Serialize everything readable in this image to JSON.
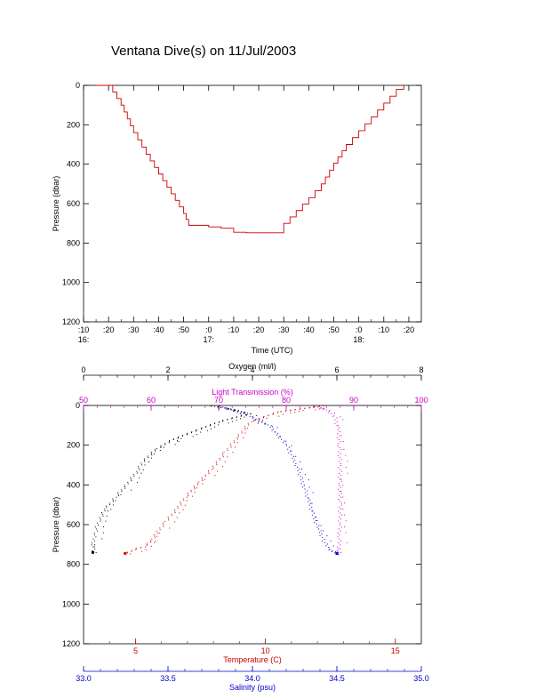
{
  "title": "Ventana Dive(s) on 11/Jul/2003",
  "chart_data": [
    {
      "type": "line",
      "xlabel": "Time (UTC)",
      "ylabel": "Pressure (dbar)",
      "x_ticks": [
        ":10",
        ":20",
        ":30",
        ":40",
        ":50",
        ":0",
        ":10",
        ":20",
        ":30",
        ":40",
        ":50",
        ":0",
        ":10",
        ":20"
      ],
      "hour_labels": [
        {
          "tick": ":10",
          "hour": "16:"
        },
        {
          "tick": ":0",
          "hour": "17:"
        },
        {
          "tick": ":0",
          "hour": "18:"
        }
      ],
      "y_ticks": [
        "0",
        "200",
        "400",
        "600",
        "800",
        "1000",
        "1200"
      ],
      "xlim": [
        "16:10",
        "18:25"
      ],
      "ylim": [
        0,
        1200
      ],
      "y_reversed": true,
      "series": [
        {
          "color": "#cc0000",
          "x": [
            "16:15",
            "16:17",
            "16:20",
            "16:25",
            "16:30",
            "16:35",
            "16:40",
            "16:45",
            "16:50",
            "16:52",
            "17:00",
            "17:05",
            "17:10",
            "17:15",
            "17:20",
            "17:25",
            "17:28",
            "17:30",
            "17:35",
            "17:40",
            "17:45",
            "17:50",
            "17:55",
            "18:00",
            "18:05",
            "18:10",
            "18:15",
            "18:18"
          ],
          "y": [
            0,
            0,
            0,
            100,
            240,
            350,
            450,
            550,
            650,
            710,
            718,
            725,
            745,
            748,
            748,
            748,
            748,
            700,
            635,
            570,
            500,
            395,
            300,
            230,
            160,
            90,
            20,
            0
          ]
        }
      ]
    },
    {
      "type": "scatter",
      "ylabel": "Pressure (dbar)",
      "y_ticks": [
        "0",
        "200",
        "400",
        "600",
        "800",
        "1000",
        "1200"
      ],
      "ylim": [
        0,
        1200
      ],
      "y_reversed": true,
      "axes": [
        {
          "label": "Oxygen (ml/l)",
          "color": "#000000",
          "min": 0,
          "max": 8,
          "ticks": [
            "0",
            "2",
            "4",
            "6",
            "8"
          ],
          "position": "top"
        },
        {
          "label": "Light Transmission (%)",
          "color": "#cc00cc",
          "min": 50,
          "max": 100,
          "ticks": [
            "50",
            "60",
            "70",
            "80",
            "90",
            "100"
          ],
          "position": "top"
        },
        {
          "label": "Temperature (C)",
          "color": "#cc0000",
          "min": 3,
          "max": 16,
          "ticks": [
            "5",
            "10",
            "15"
          ],
          "position": "bottom"
        },
        {
          "label": "Salinity (psu)",
          "color": "#0000cc",
          "min": 33.0,
          "max": 35.0,
          "ticks": [
            "33.0",
            "33.5",
            "34.0",
            "34.5",
            "35.0"
          ],
          "position": "bottom"
        }
      ],
      "series": [
        {
          "axis": 0,
          "color": "#000000",
          "x": [
            3.0,
            3.6,
            3.9,
            3.2,
            2.7,
            2.1,
            1.7,
            1.4,
            1.25,
            1.0,
            0.75,
            0.5,
            0.35,
            0.25,
            0.22,
            0.22
          ],
          "y": [
            0,
            20,
            40,
            80,
            120,
            170,
            220,
            280,
            330,
            400,
            460,
            520,
            580,
            650,
            700,
            740
          ]
        },
        {
          "axis": 1,
          "color": "#cc00cc",
          "x": [
            84,
            86,
            87.2,
            87.6,
            87.8,
            87.9,
            87.9,
            87.9,
            87.9,
            87.8,
            87.8,
            87.6,
            87.5
          ],
          "y": [
            0,
            20,
            60,
            120,
            200,
            300,
            400,
            500,
            600,
            660,
            700,
            730,
            745
          ]
        },
        {
          "axis": 2,
          "color": "#cc0000",
          "x": [
            12.2,
            10.5,
            9.4,
            8.9,
            8.4,
            7.9,
            7.4,
            6.9,
            6.5,
            6.1,
            5.8,
            5.6,
            5.3,
            5.0,
            4.6
          ],
          "y": [
            0,
            30,
            80,
            160,
            240,
            320,
            390,
            460,
            530,
            590,
            640,
            680,
            710,
            720,
            745
          ]
        },
        {
          "axis": 3,
          "color": "#0000cc",
          "x": [
            33.8,
            33.95,
            34.1,
            34.2,
            34.26,
            34.3,
            34.34,
            34.36,
            34.39,
            34.42,
            34.45,
            34.5
          ],
          "y": [
            0,
            40,
            100,
            200,
            300,
            400,
            500,
            560,
            620,
            680,
            720,
            745
          ]
        }
      ]
    }
  ]
}
